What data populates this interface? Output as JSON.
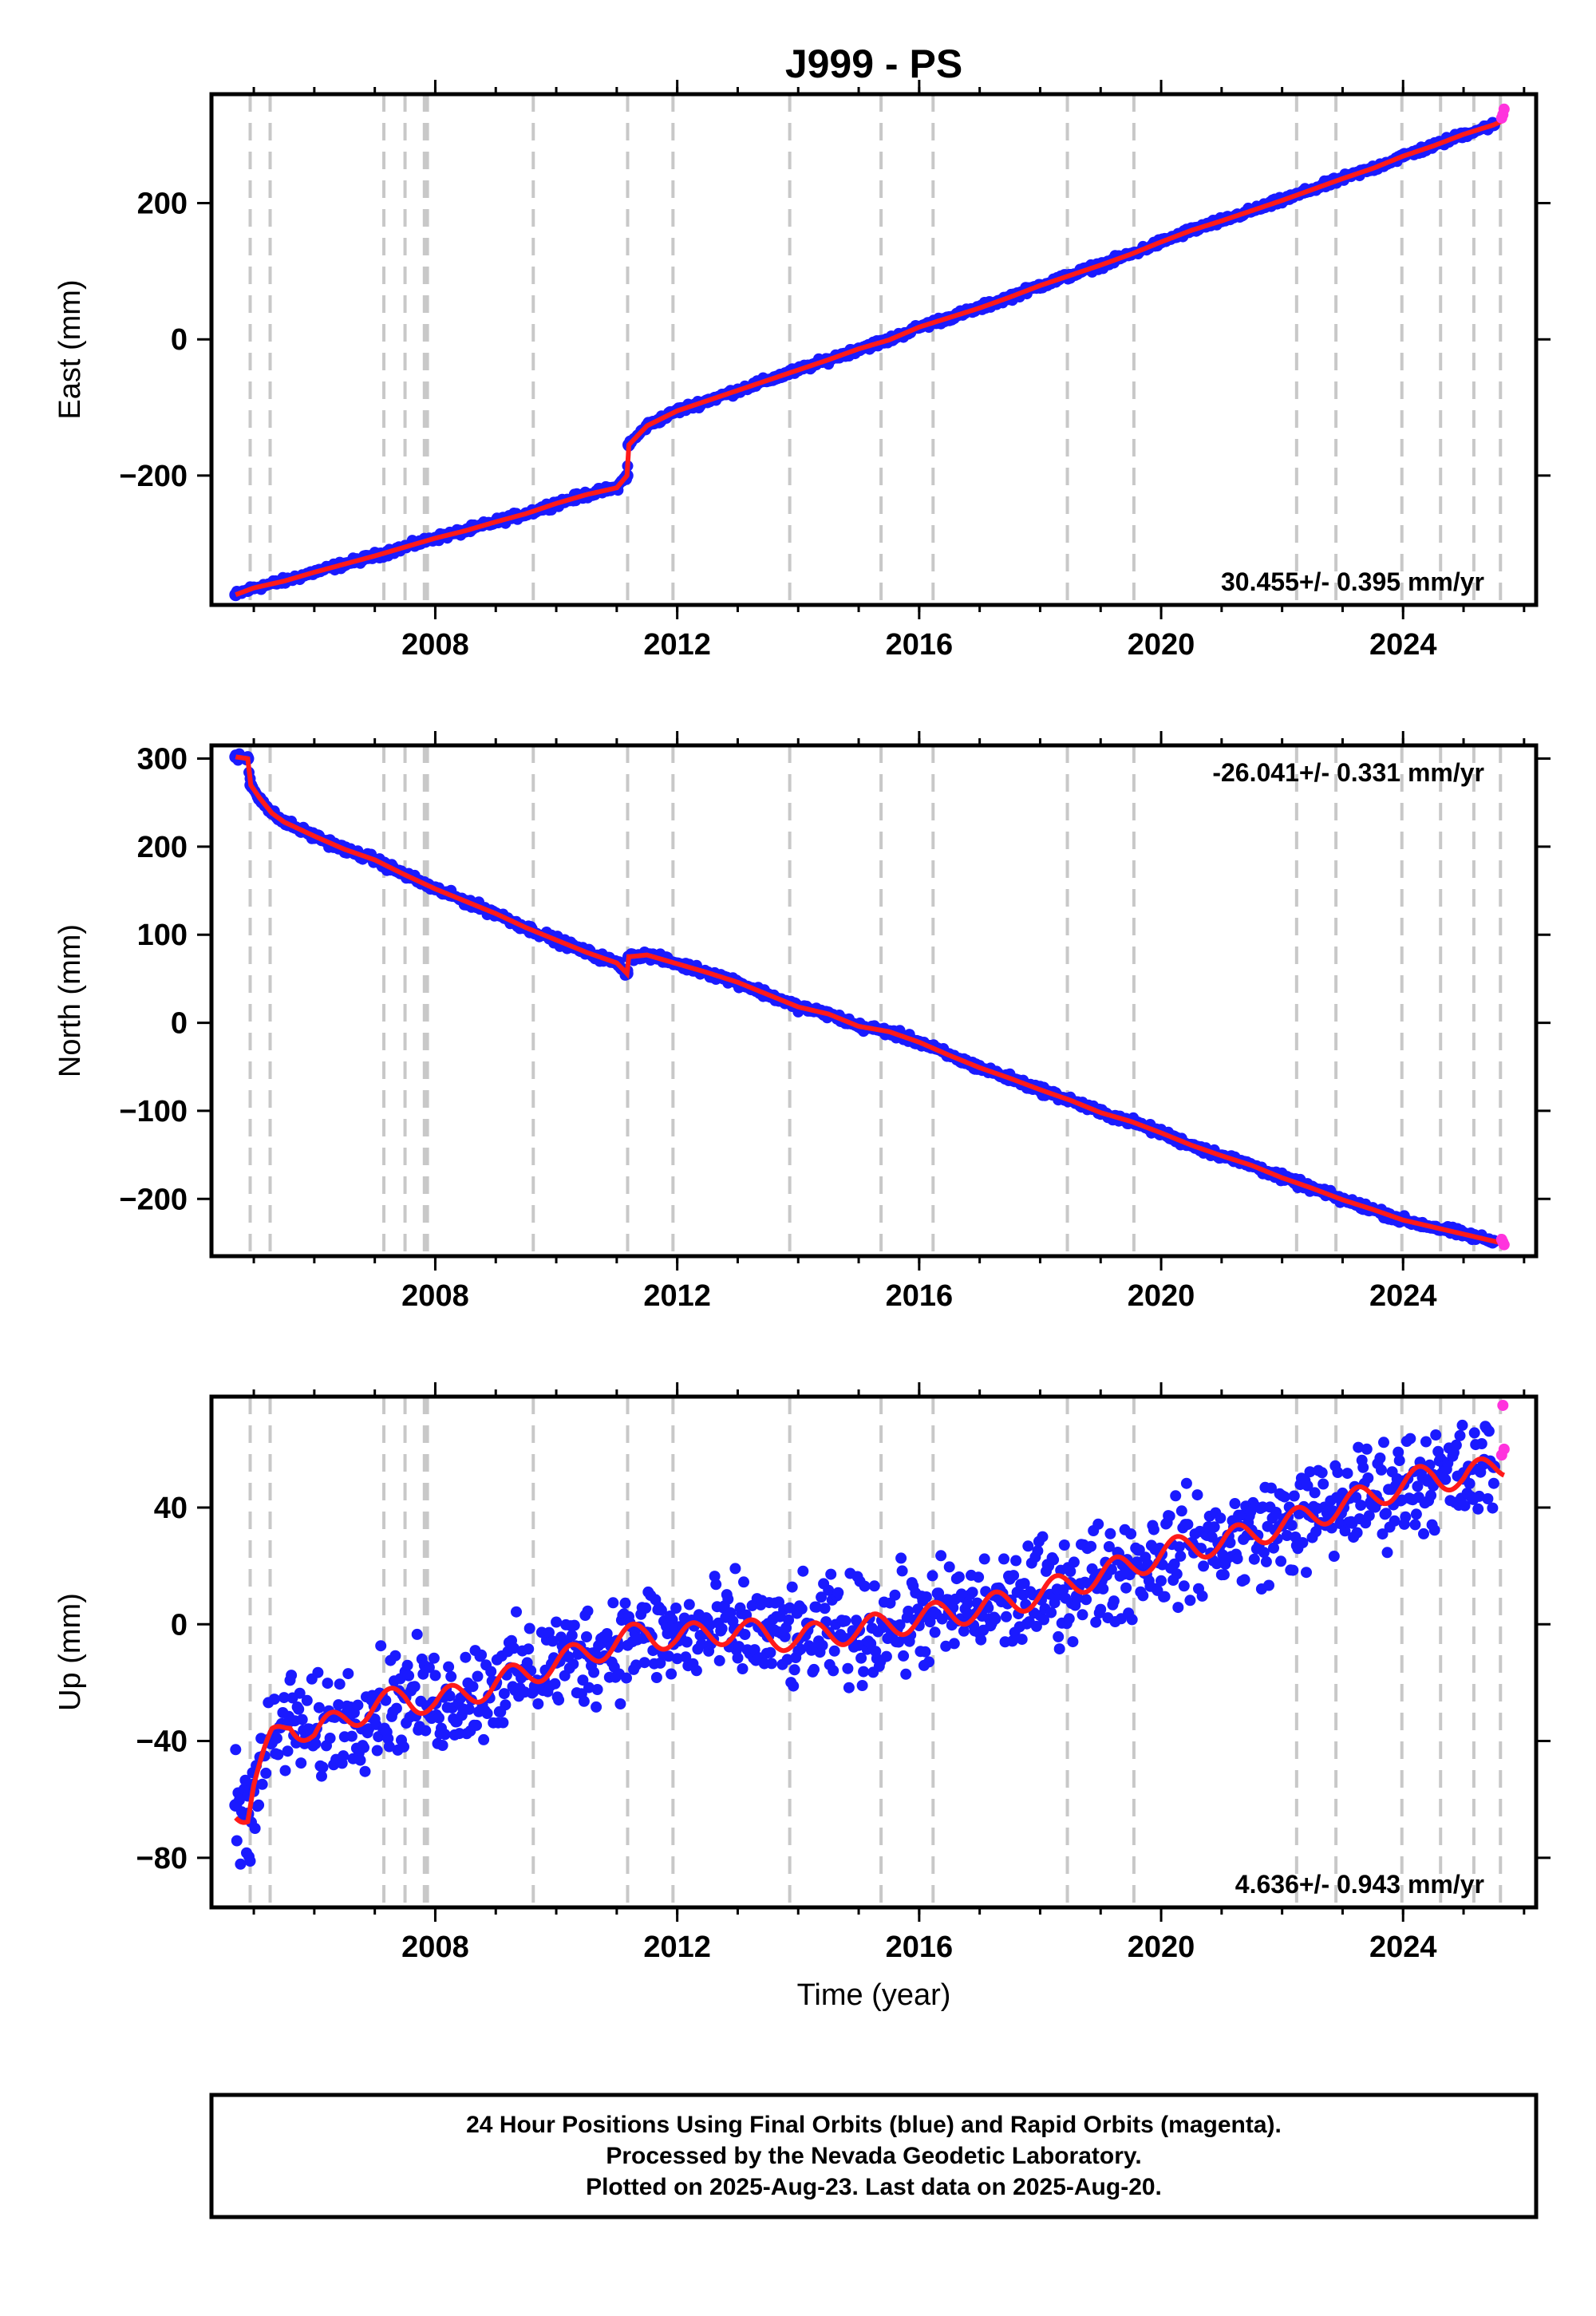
{
  "figure": {
    "title": "J999 - PS",
    "xlabel": "Time (year)",
    "note_lines": [
      "24 Hour Positions Using Final Orbits (blue) and Rapid Orbits (magenta).",
      "Processed by the Nevada Geodetic Laboratory.",
      "Plotted on 2025-Aug-23. Last data on 2025-Aug-20."
    ]
  },
  "colors": {
    "final_orbits": "#1a1aff",
    "rapid_orbits": "#ff33dd",
    "model": "#ff1a1a",
    "event_lines": "#c8c8c8",
    "frame": "#000000"
  },
  "chart_data": [
    {
      "type": "scatter",
      "ylabel": "East (mm)",
      "rate_label": "30.455+/- 0.395 mm/yr",
      "xlim": [
        2004.3,
        2026.2
      ],
      "ylim": [
        -390,
        360
      ],
      "xticks": [
        2008,
        2012,
        2016,
        2020,
        2024
      ],
      "yticks": [
        -200,
        0,
        200
      ],
      "rate_position": "bottom-right",
      "event_lines": [
        2004.94,
        2005.27,
        2007.15,
        2007.5,
        2007.82,
        2007.87,
        2009.62,
        2011.18,
        2011.93,
        2013.86,
        2015.37,
        2016.23,
        2018.45,
        2019.55,
        2022.24,
        2022.89,
        2023.98,
        2024.62,
        2025.17,
        2025.61
      ],
      "series": [
        {
          "name": "Final Orbits",
          "role": "final",
          "x": [
            2004.7,
            2005.0,
            2005.5,
            2006.0,
            2006.5,
            2007.0,
            2007.5,
            2008.0,
            2008.5,
            2009.0,
            2009.5,
            2010.0,
            2010.5,
            2011.0,
            2011.17,
            2011.2,
            2011.5,
            2012.0,
            2012.5,
            2013.0,
            2013.5,
            2014.0,
            2014.5,
            2015.0,
            2015.5,
            2016.0,
            2016.5,
            2017.0,
            2017.5,
            2018.0,
            2018.5,
            2019.0,
            2019.5,
            2020.0,
            2020.5,
            2021.0,
            2021.5,
            2022.0,
            2022.5,
            2023.0,
            2023.5,
            2024.0,
            2024.5,
            2025.0,
            2025.5
          ],
          "y": [
            -375,
            -365,
            -355,
            -342,
            -330,
            -318,
            -305,
            -292,
            -281,
            -268,
            -256,
            -241,
            -228,
            -218,
            -200,
            -155,
            -127,
            -105,
            -90,
            -75,
            -60,
            -45,
            -30,
            -14,
            -1,
            18,
            32,
            46,
            62,
            79,
            94,
            109,
            125,
            143,
            160,
            174,
            189,
            204,
            220,
            236,
            251,
            269,
            284,
            301,
            315
          ]
        },
        {
          "name": "Rapid Orbits",
          "role": "rapid",
          "x": [
            2025.63,
            2025.65,
            2025.67
          ],
          "y": [
            325,
            330,
            338
          ]
        }
      ],
      "model_line": {
        "x": [
          2004.7,
          2005.0,
          2005.5,
          2006.0,
          2006.5,
          2007.0,
          2007.5,
          2008.0,
          2008.5,
          2009.0,
          2009.5,
          2010.0,
          2010.5,
          2011.0,
          2011.17,
          2011.2,
          2011.5,
          2012.0,
          2012.5,
          2013.0,
          2013.5,
          2014.0,
          2014.5,
          2015.0,
          2015.5,
          2016.0,
          2016.5,
          2017.0,
          2017.5,
          2018.0,
          2018.5,
          2019.0,
          2019.5,
          2020.0,
          2020.5,
          2021.0,
          2021.5,
          2022.0,
          2022.5,
          2023.0,
          2023.5,
          2024.0,
          2024.5,
          2025.0,
          2025.5,
          2025.67
        ],
        "y": [
          -375,
          -365,
          -355,
          -342,
          -330,
          -318,
          -305,
          -292,
          -281,
          -268,
          -256,
          -241,
          -228,
          -218,
          -200,
          -155,
          -127,
          -105,
          -90,
          -75,
          -60,
          -45,
          -30,
          -14,
          -1,
          18,
          32,
          46,
          62,
          79,
          94,
          109,
          125,
          143,
          160,
          174,
          189,
          204,
          220,
          236,
          251,
          269,
          284,
          301,
          315,
          322
        ]
      }
    },
    {
      "type": "scatter",
      "ylabel": "North (mm)",
      "rate_label": "-26.041+/- 0.331 mm/yr",
      "xlim": [
        2004.3,
        2026.2
      ],
      "ylim": [
        -265,
        315
      ],
      "xticks": [
        2008,
        2012,
        2016,
        2020,
        2024
      ],
      "yticks": [
        -200,
        -100,
        0,
        100,
        200,
        300
      ],
      "rate_position": "top-right",
      "event_lines": [
        2004.94,
        2005.27,
        2007.15,
        2007.5,
        2007.82,
        2007.87,
        2009.62,
        2011.18,
        2011.93,
        2013.86,
        2015.37,
        2016.23,
        2018.45,
        2019.55,
        2022.24,
        2022.89,
        2023.98,
        2024.62,
        2025.17,
        2025.61
      ],
      "series": [
        {
          "name": "Final Orbits",
          "role": "final",
          "x": [
            2004.7,
            2004.9,
            2004.95,
            2005.1,
            2005.3,
            2005.5,
            2006.0,
            2006.5,
            2007.0,
            2007.5,
            2008.0,
            2008.5,
            2009.0,
            2009.5,
            2010.0,
            2010.5,
            2011.0,
            2011.17,
            2011.2,
            2011.5,
            2012.0,
            2012.5,
            2013.0,
            2013.5,
            2014.0,
            2014.5,
            2015.0,
            2015.5,
            2016.0,
            2016.5,
            2017.0,
            2017.5,
            2018.0,
            2018.5,
            2019.0,
            2019.5,
            2020.0,
            2020.5,
            2021.0,
            2021.5,
            2022.0,
            2022.5,
            2023.0,
            2023.5,
            2024.0,
            2024.5,
            2025.0,
            2025.5
          ],
          "y": [
            302,
            300,
            270,
            255,
            238,
            228,
            212,
            197,
            185,
            168,
            152,
            138,
            124,
            108,
            94,
            80,
            68,
            56,
            75,
            77,
            67,
            57,
            46,
            32,
            18,
            10,
            -4,
            -10,
            -22,
            -37,
            -51,
            -63,
            -76,
            -88,
            -102,
            -112,
            -125,
            -139,
            -151,
            -162,
            -176,
            -188,
            -201,
            -212,
            -224,
            -232,
            -240,
            -248
          ]
        },
        {
          "name": "Rapid Orbits",
          "role": "rapid",
          "x": [
            2025.63,
            2025.65,
            2025.67
          ],
          "y": [
            -246,
            -249,
            -252
          ]
        }
      ],
      "model_line": {
        "x": [
          2004.7,
          2004.9,
          2004.95,
          2005.1,
          2005.3,
          2005.5,
          2006.0,
          2006.5,
          2007.0,
          2007.5,
          2008.0,
          2008.5,
          2009.0,
          2009.5,
          2010.0,
          2010.5,
          2011.0,
          2011.17,
          2011.2,
          2011.5,
          2012.0,
          2012.5,
          2013.0,
          2013.5,
          2014.0,
          2014.5,
          2015.0,
          2015.5,
          2016.0,
          2016.5,
          2017.0,
          2017.5,
          2018.0,
          2018.5,
          2019.0,
          2019.5,
          2020.0,
          2020.5,
          2021.0,
          2021.5,
          2022.0,
          2022.5,
          2023.0,
          2023.5,
          2024.0,
          2024.5,
          2025.0,
          2025.5,
          2025.67
        ],
        "y": [
          302,
          300,
          270,
          255,
          238,
          228,
          212,
          197,
          185,
          168,
          152,
          138,
          124,
          108,
          94,
          80,
          68,
          56,
          75,
          77,
          67,
          57,
          46,
          32,
          18,
          10,
          -4,
          -10,
          -22,
          -37,
          -51,
          -63,
          -76,
          -88,
          -102,
          -112,
          -125,
          -139,
          -151,
          -162,
          -176,
          -188,
          -201,
          -212,
          -224,
          -232,
          -240,
          -248,
          -251
        ]
      }
    },
    {
      "type": "scatter",
      "ylabel": "Up (mm)",
      "rate_label": "4.636+/- 0.943 mm/yr",
      "xlim": [
        2004.3,
        2026.2
      ],
      "ylim": [
        -97,
        78
      ],
      "xticks": [
        2008,
        2012,
        2016,
        2020,
        2024
      ],
      "yticks": [
        -80,
        -40,
        0,
        40
      ],
      "rate_position": "bottom-right",
      "event_lines": [
        2004.94,
        2005.27,
        2007.15,
        2007.5,
        2007.82,
        2007.87,
        2009.62,
        2011.18,
        2011.93,
        2013.86,
        2015.37,
        2016.23,
        2018.45,
        2019.55,
        2022.24,
        2022.89,
        2023.98,
        2024.62,
        2025.17,
        2025.61
      ],
      "series": [
        {
          "name": "Final Orbits",
          "role": "final",
          "x": [
            2004.7,
            2004.9,
            2005.0,
            2005.3,
            2005.6,
            2006.0,
            2006.5,
            2007.0,
            2007.5,
            2008.0,
            2008.5,
            2009.0,
            2009.5,
            2010.0,
            2010.5,
            2011.0,
            2011.5,
            2012.0,
            2012.5,
            2013.0,
            2013.5,
            2014.0,
            2014.5,
            2015.0,
            2015.5,
            2016.0,
            2016.5,
            2017.0,
            2017.5,
            2018.0,
            2018.5,
            2019.0,
            2019.5,
            2020.0,
            2020.5,
            2021.0,
            2021.5,
            2022.0,
            2022.5,
            2023.0,
            2023.5,
            2024.0,
            2024.5,
            2025.0,
            2025.5
          ],
          "y": [
            -62,
            -65,
            -55,
            -40,
            -33,
            -38,
            -32,
            -28,
            -25,
            -27,
            -24,
            -20,
            -17,
            -13,
            -10,
            -6,
            -3,
            -5,
            -3,
            -2,
            -4,
            -5,
            -3,
            -2,
            0,
            2,
            4,
            5,
            8,
            10,
            14,
            17,
            20,
            24,
            27,
            28,
            31,
            34,
            37,
            41,
            44,
            48,
            51,
            50,
            54
          ]
        },
        {
          "name": "Rapid Orbits",
          "role": "rapid",
          "x": [
            2025.63,
            2025.65,
            2025.67
          ],
          "y": [
            58,
            75,
            60
          ]
        }
      ],
      "model_line": {
        "x": [
          2004.7,
          2004.9,
          2005.0,
          2005.3,
          2005.6,
          2006.0,
          2006.5,
          2007.0,
          2007.5,
          2008.0,
          2008.5,
          2009.0,
          2009.5,
          2010.0,
          2010.5,
          2011.0,
          2011.5,
          2012.0,
          2012.5,
          2013.0,
          2013.5,
          2014.0,
          2014.5,
          2015.0,
          2015.5,
          2016.0,
          2016.5,
          2017.0,
          2017.5,
          2018.0,
          2018.5,
          2019.0,
          2019.5,
          2020.0,
          2020.5,
          2021.0,
          2021.5,
          2022.0,
          2022.5,
          2023.0,
          2023.5,
          2024.0,
          2024.5,
          2025.0,
          2025.5,
          2025.67
        ],
        "y": [
          -62,
          -65,
          -55,
          -40,
          -33,
          -38,
          -32,
          -28,
          -25,
          -27,
          -24,
          -20,
          -17,
          -13,
          -10,
          -6,
          -3,
          -5,
          -3,
          -2,
          -4,
          -5,
          -3,
          -2,
          0,
          2,
          4,
          5,
          8,
          10,
          14,
          17,
          20,
          24,
          27,
          28,
          31,
          34,
          37,
          41,
          44,
          48,
          51,
          50,
          54,
          55
        ]
      }
    }
  ]
}
